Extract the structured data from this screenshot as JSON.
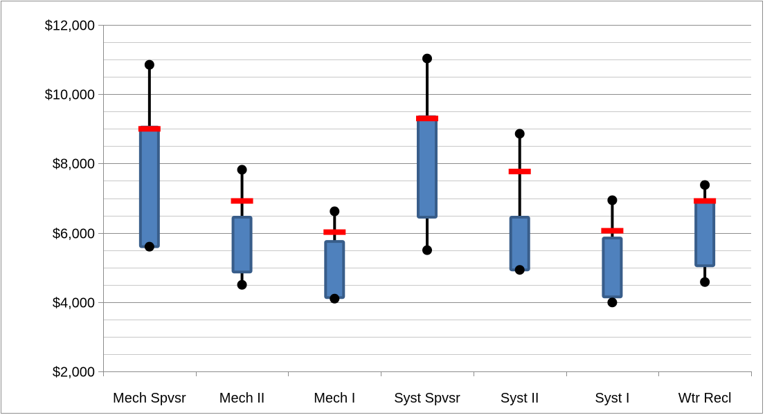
{
  "chart_data": {
    "type": "box",
    "title": "",
    "xlabel": "",
    "ylabel": "",
    "ylim": [
      2000,
      12000
    ],
    "y_major_ticks": [
      2000,
      4000,
      6000,
      8000,
      10000,
      12000
    ],
    "y_tick_labels": [
      "$2,000",
      "$4,000",
      "$6,000",
      "$8,000",
      "$10,000",
      "$12,000"
    ],
    "y_minor_step": 500,
    "grid": true,
    "legend": "none",
    "categories": [
      "Mech Spvsr",
      "Mech II",
      "Mech I",
      "Syst Spvsr",
      "Syst II",
      "Syst I",
      "Wtr Recl"
    ],
    "series": [
      {
        "values": [
          {
            "min": 5600,
            "q1": 5600,
            "q3": 9050,
            "max": 10850,
            "marker": 9000
          },
          {
            "min": 4500,
            "q1": 4870,
            "q3": 6450,
            "max": 7820,
            "marker": 6920
          },
          {
            "min": 4100,
            "q1": 4130,
            "q3": 5750,
            "max": 6620,
            "marker": 6020
          },
          {
            "min": 5500,
            "q1": 6450,
            "q3": 9350,
            "max": 11030,
            "marker": 9300
          },
          {
            "min": 4930,
            "q1": 4930,
            "q3": 6450,
            "max": 8860,
            "marker": 7770
          },
          {
            "min": 3990,
            "q1": 4150,
            "q3": 5850,
            "max": 6940,
            "marker": 6060
          },
          {
            "min": 4580,
            "q1": 5050,
            "q3": 6900,
            "max": 7380,
            "marker": 6920
          }
        ]
      }
    ],
    "colors": {
      "box_fill": "#4f81bd",
      "box_border": "#385d8a",
      "whisker": "#000000",
      "marker": "#ff0000",
      "major_grid": "#8c8c8c",
      "minor_grid": "#c8c8c8",
      "axis": "#8c8c8c"
    }
  }
}
